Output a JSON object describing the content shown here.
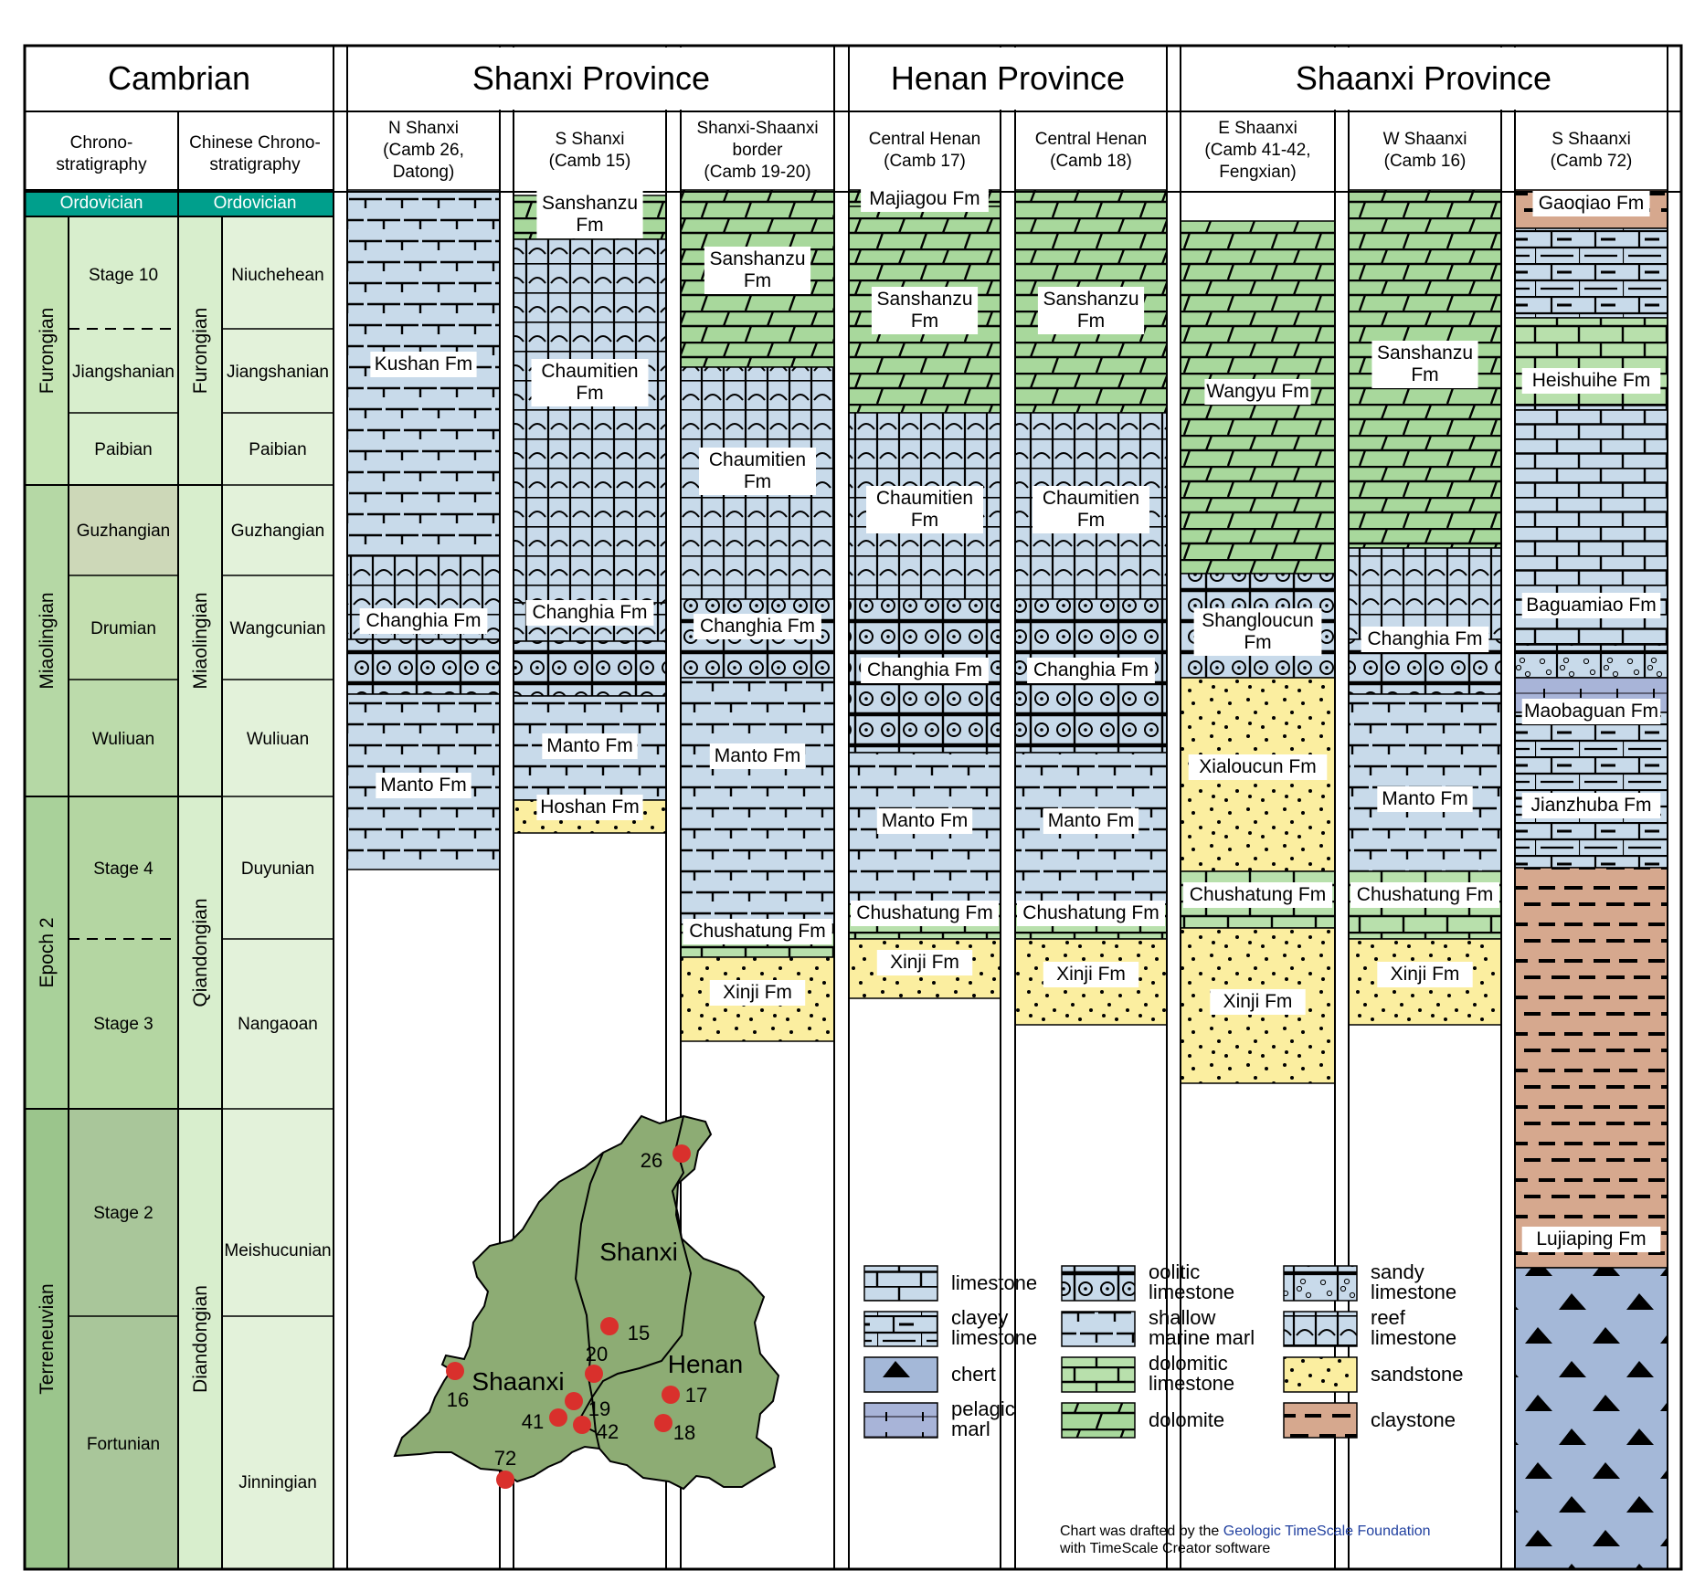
{
  "header": {
    "left": "Cambrian",
    "provinces": [
      "Shanxi Province",
      "Henan Province",
      "Shaanxi Province"
    ]
  },
  "chrono_headers": {
    "international": [
      "Chrono-",
      "stratigraphy"
    ],
    "chinese": [
      "Chinese Chrono-",
      "stratigraphy"
    ]
  },
  "ordovician_label": "Ordovician",
  "international_series": [
    "Furongian",
    "Miaolingian",
    "Epoch 2",
    "Terreneuvian"
  ],
  "international_stages": [
    "Stage 10",
    "Jiangshanian",
    "Paibian",
    "Guzhangian",
    "Drumian",
    "Wuliuan",
    "Stage 4",
    "Stage 3",
    "Stage 2",
    "Fortunian"
  ],
  "chinese_series": [
    "Furongian",
    "Miaolingian",
    "Qiandongian",
    "Diandongian"
  ],
  "chinese_stages": [
    "Niuchehean",
    "Jiangshanian",
    "Paibian",
    "Guzhangian",
    "Wangcunian",
    "Wuliuan",
    "Duyunian",
    "Nangaoan",
    "Meishucunian",
    "Jinningian"
  ],
  "columns": [
    {
      "id": "c1",
      "lines": [
        "N Shanxi",
        "(Camb 26,",
        "Datong)"
      ],
      "units": [
        {
          "label": [
            "Kushan Fm"
          ],
          "lith": "shallow-marine-marl"
        },
        {
          "label": [
            "Changhia Fm"
          ],
          "lith": "reef-limestone"
        },
        {
          "label": [],
          "lith": "oolitic-limestone"
        },
        {
          "label": [
            "Manto Fm"
          ],
          "lith": "shallow-marine-marl"
        }
      ]
    },
    {
      "id": "c2",
      "lines": [
        "S Shanxi",
        "(Camb 15)"
      ],
      "units": [
        {
          "label": [
            "Sanshanzu",
            "Fm"
          ],
          "lith": "dolomite"
        },
        {
          "label": [
            "Chaumitien",
            "Fm"
          ],
          "lith": "reef-limestone"
        },
        {
          "label": [
            "Changhia Fm"
          ],
          "lith": "reef-limestone"
        },
        {
          "label": [],
          "lith": "oolitic-limestone"
        },
        {
          "label": [
            "Manto Fm"
          ],
          "lith": "shallow-marine-marl"
        },
        {
          "label": [
            "Hoshan Fm"
          ],
          "lith": "sandstone"
        }
      ]
    },
    {
      "id": "c3",
      "lines": [
        "Shanxi-Shaanxi",
        "border",
        "(Camb 19-20)"
      ],
      "units": [
        {
          "label": [
            "Sanshanzu",
            "Fm"
          ],
          "lith": "dolomite"
        },
        {
          "label": [
            "Chaumitien",
            "Fm"
          ],
          "lith": "reef-limestone"
        },
        {
          "label": [
            "Changhia Fm"
          ],
          "lith": "oolitic-limestone"
        },
        {
          "label": [
            "Manto Fm"
          ],
          "lith": "shallow-marine-marl"
        },
        {
          "label": [
            "Chushatung Fm"
          ],
          "lith": "dolomitic-limestone"
        },
        {
          "label": [
            "Xinji Fm"
          ],
          "lith": "sandstone"
        }
      ]
    },
    {
      "id": "c4",
      "lines": [
        "Central Henan",
        "(Camb 17)"
      ],
      "units": [
        {
          "label": [
            "Majiagou Fm"
          ],
          "lith": "dolomite"
        },
        {
          "label": [
            "Sanshanzu",
            "Fm"
          ],
          "lith": "dolomite"
        },
        {
          "label": [
            "Chaumitien",
            "Fm"
          ],
          "lith": "reef-limestone"
        },
        {
          "label": [
            "Changhia Fm"
          ],
          "lith": "oolitic-limestone"
        },
        {
          "label": [
            "Manto Fm"
          ],
          "lith": "shallow-marine-marl"
        },
        {
          "label": [
            "Chushatung Fm"
          ],
          "lith": "dolomitic-limestone"
        },
        {
          "label": [
            "Xinji Fm"
          ],
          "lith": "sandstone"
        }
      ]
    },
    {
      "id": "c5",
      "lines": [
        "Central Henan",
        "(Camb 18)"
      ],
      "units": [
        {
          "label": [
            "Sanshanzu",
            "Fm"
          ],
          "lith": "dolomite"
        },
        {
          "label": [
            "Chaumitien",
            "Fm"
          ],
          "lith": "reef-limestone"
        },
        {
          "label": [
            "Changhia Fm"
          ],
          "lith": "oolitic-limestone"
        },
        {
          "label": [
            "Manto Fm"
          ],
          "lith": "shallow-marine-marl"
        },
        {
          "label": [
            "Chushatung Fm"
          ],
          "lith": "dolomitic-limestone"
        },
        {
          "label": [
            "Xinji Fm"
          ],
          "lith": "sandstone"
        }
      ]
    },
    {
      "id": "c6",
      "lines": [
        "E Shaanxi",
        "(Camb 41-42,",
        "Fengxian)"
      ],
      "units": [
        {
          "label": [
            "Wangyu Fm"
          ],
          "lith": "dolomite"
        },
        {
          "label": [
            "Shangloucun",
            "Fm"
          ],
          "lith": "oolitic-limestone"
        },
        {
          "label": [
            "Xialoucun Fm"
          ],
          "lith": "sandstone"
        },
        {
          "label": [
            "Chushatung Fm"
          ],
          "lith": "dolomitic-limestone"
        },
        {
          "label": [
            "Xinji Fm"
          ],
          "lith": "sandstone"
        }
      ]
    },
    {
      "id": "c7",
      "lines": [
        "W Shaanxi",
        "(Camb 16)"
      ],
      "units": [
        {
          "label": [
            "Sanshanzu",
            "Fm"
          ],
          "lith": "dolomite"
        },
        {
          "label": [
            "Changhia Fm"
          ],
          "lith": "reef-limestone"
        },
        {
          "label": [],
          "lith": "oolitic-limestone"
        },
        {
          "label": [
            "Manto Fm"
          ],
          "lith": "shallow-marine-marl"
        },
        {
          "label": [
            "Chushatung Fm"
          ],
          "lith": "dolomitic-limestone"
        },
        {
          "label": [
            "Xinji Fm"
          ],
          "lith": "sandstone"
        }
      ]
    },
    {
      "id": "c8",
      "lines": [
        "S Shaanxi",
        "(Camb 72)"
      ],
      "units": [
        {
          "label": [
            "Gaoqiao Fm"
          ],
          "lith": "claystone"
        },
        {
          "label": [],
          "lith": "clayey-limestone"
        },
        {
          "label": [
            "Heishuihe Fm"
          ],
          "lith": "dolomitic-limestone"
        },
        {
          "label": [
            "Baguamiao Fm"
          ],
          "lith": "limestone"
        },
        {
          "label": [],
          "lith": "sandy-limestone"
        },
        {
          "label": [
            "Maobaguan Fm"
          ],
          "lith": "pelagic-marl"
        },
        {
          "label": [
            "Jianzhuba Fm"
          ],
          "lith": "clayey-limestone"
        },
        {
          "label": [
            "Lujiaping Fm"
          ],
          "lith": "claystone"
        },
        {
          "label": [],
          "lith": "chert"
        }
      ]
    }
  ],
  "map": {
    "provinces": [
      "Shanxi",
      "Henan",
      "Shaanxi"
    ],
    "sites": [
      "26",
      "15",
      "20",
      "19",
      "41",
      "42",
      "16",
      "72",
      "17",
      "18"
    ]
  },
  "legend": [
    {
      "id": "limestone",
      "label": [
        "limestone"
      ]
    },
    {
      "id": "clayey-limestone",
      "label": [
        "clayey",
        "limestone"
      ]
    },
    {
      "id": "chert",
      "label": [
        "chert"
      ]
    },
    {
      "id": "pelagic-marl",
      "label": [
        "pelagic",
        "marl"
      ]
    },
    {
      "id": "oolitic-limestone",
      "label": [
        "oolitic",
        "limestone"
      ]
    },
    {
      "id": "shallow-marine-marl",
      "label": [
        "shallow",
        "marine marl"
      ]
    },
    {
      "id": "dolomitic-limestone",
      "label": [
        "dolomitic",
        "limestone"
      ]
    },
    {
      "id": "dolomite",
      "label": [
        "dolomite"
      ]
    },
    {
      "id": "sandy-limestone",
      "label": [
        "sandy",
        "limestone"
      ]
    },
    {
      "id": "reef-limestone",
      "label": [
        "reef",
        "limestone"
      ]
    },
    {
      "id": "sandstone",
      "label": [
        "sandstone"
      ]
    },
    {
      "id": "claystone",
      "label": [
        "claystone"
      ]
    }
  ],
  "credit": {
    "prefix": "Chart was drafted by the ",
    "link": "Geologic TimeScale Foundation",
    "line2": "with TimeScale Creator software"
  },
  "colors": {
    "ordovician_bar": "#009f8c",
    "limestone": "#c8daea",
    "dolomite": "#a8d89c",
    "dolomitic_limestone": "#b8e0ac",
    "sandstone": "#fbeea0",
    "claystone": "#d6a88e",
    "pelagic_marl": "#a8b4d8",
    "map_fill": "#8dac74",
    "site_dot": "#d9302c",
    "link": "#2342a0"
  }
}
